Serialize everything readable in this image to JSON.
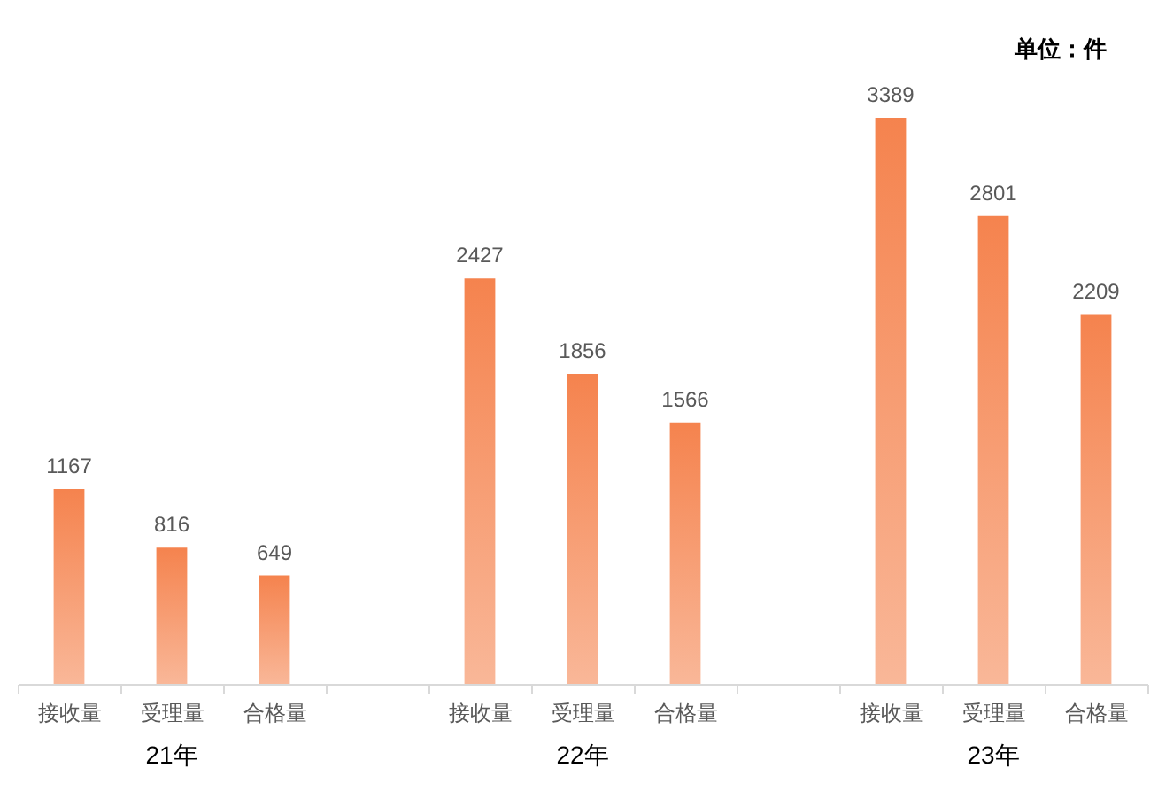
{
  "chart_data": {
    "type": "bar",
    "categories": [
      "接收量",
      "受理量",
      "合格量",
      null,
      "接收量",
      "受理量",
      "合格量",
      null,
      "接收量",
      "受理量",
      "合格量"
    ],
    "values": [
      1167,
      816,
      649,
      null,
      2427,
      1856,
      1566,
      null,
      3389,
      2801,
      2209
    ],
    "color": "#f5834e",
    "data_labels": true,
    "grid": false,
    "annotations": [
      "单位：件",
      "21年",
      "22年",
      "23年"
    ]
  }
}
